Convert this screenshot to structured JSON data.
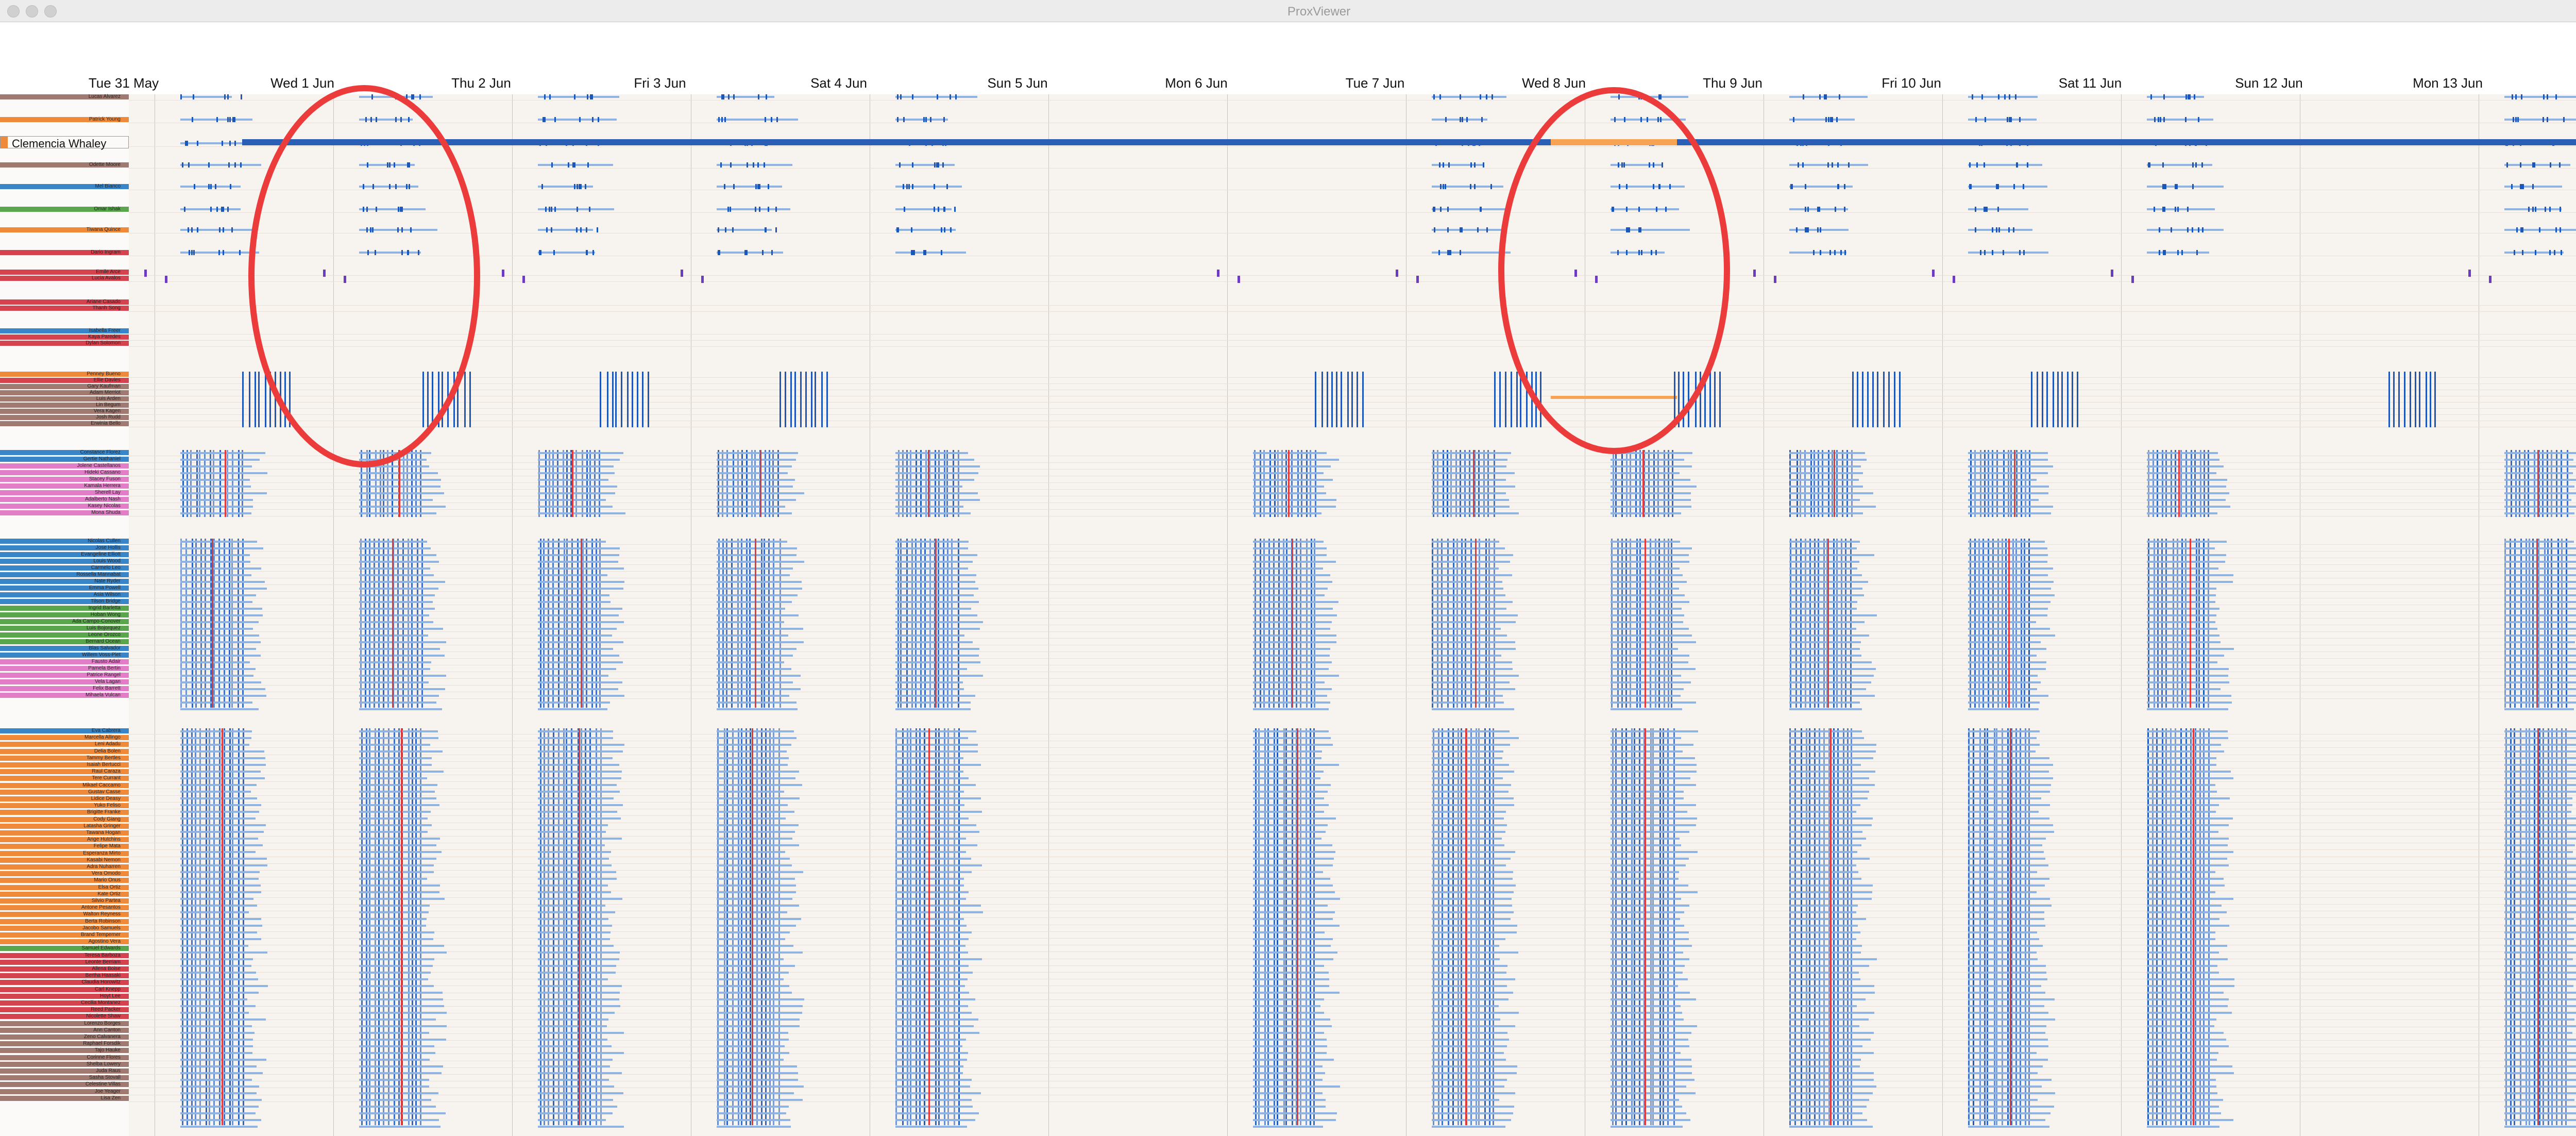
{
  "window": {
    "title": "ProxViewer"
  },
  "dates": [
    "Tue 31 May",
    "Wed 1 Jun",
    "Thu 2 Jun",
    "Fri 3 Jun",
    "Sat 4 Jun",
    "Sun 5 Jun",
    "Mon 6 Jun",
    "Tue 7 Jun",
    "Wed 8 Jun",
    "Thu 9 Jun",
    "Fri 10 Jun",
    "Sat 11 Jun",
    "Sun 12 Jun",
    "Mon 13 Jun"
  ],
  "highlighted_person": {
    "name": "Clemencia Whaley",
    "color": "#ef8a3a"
  },
  "colors": {
    "timeline_blue": "#1c57b8",
    "light_blue": "#8fb3e2",
    "red": "#e23a3a",
    "orange": "#f6a454",
    "purple": "#6c3cc0",
    "circle": "#ec3b3b"
  },
  "rows_top": [
    {
      "name": "Lucas Alvarez",
      "color": "#a07a70"
    },
    {
      "name": "Patrick Young",
      "color": "#ef8a3a"
    },
    {
      "name": "",
      "color": "#ffffff"
    },
    {
      "name": "Odette Moore",
      "color": "#a07a70"
    },
    {
      "name": "Mel Bianco",
      "color": "#3a85c8"
    },
    {
      "name": "Omar Ishak",
      "color": "#5aa64c"
    },
    {
      "name": "Tiwana Quince",
      "color": "#ef8a3a"
    },
    {
      "name": "Dario Ingram",
      "color": "#d5434f"
    },
    {
      "name": "Emile Arce",
      "color": "#d5434f"
    },
    {
      "name": "Lucia Avalos",
      "color": "#d5434f"
    },
    {
      "name": "Ariane Casado",
      "color": "#d5434f"
    },
    {
      "name": "Thanh Song",
      "color": "#d5434f"
    },
    {
      "name": "Isabella Freer",
      "color": "#3a85c8"
    },
    {
      "name": "Kaya Paredes",
      "color": "#d5434f"
    },
    {
      "name": "Dylan Solomon",
      "color": "#d5434f"
    },
    {
      "name": "Penney Bueno",
      "color": "#ef8a3a"
    },
    {
      "name": "Ellie Davies",
      "color": "#d5434f"
    },
    {
      "name": "Gary Kaufman",
      "color": "#a07a70"
    },
    {
      "name": "Adam Merriot",
      "color": "#a07a70"
    },
    {
      "name": "Luis Arden",
      "color": "#a07a70"
    },
    {
      "name": "Lin Begum",
      "color": "#a07a70"
    },
    {
      "name": "Vera Kagen",
      "color": "#a07a70"
    },
    {
      "name": "Josh Rudd",
      "color": "#a07a70"
    },
    {
      "name": "Erwinia Bello",
      "color": "#a07a70"
    }
  ],
  "rows_group2": [
    {
      "name": "Constance Florez",
      "color": "#3a85c8"
    },
    {
      "name": "Gertie Nathaniel",
      "color": "#3a85c8"
    },
    {
      "name": "Jolene Castellanos",
      "color": "#e27ec8"
    },
    {
      "name": "Hideki Cassano",
      "color": "#e27ec8"
    },
    {
      "name": "Stacey Fuson",
      "color": "#e27ec8"
    },
    {
      "name": "Kamala Herrera",
      "color": "#e27ec8"
    },
    {
      "name": "Sherell Lay",
      "color": "#e27ec8"
    },
    {
      "name": "Adalberto Nash",
      "color": "#e27ec8"
    },
    {
      "name": "Kasey Nicolas",
      "color": "#e27ec8"
    },
    {
      "name": "Mona Shuda",
      "color": "#e27ec8"
    }
  ],
  "rows_group3": [
    {
      "name": "Nicolas Cullen",
      "color": "#3a85c8"
    },
    {
      "name": "Jose Hollis",
      "color": "#3a85c8"
    },
    {
      "name": "Evangeline Elliott",
      "color": "#3a85c8"
    },
    {
      "name": "Louis Wood",
      "color": "#3a85c8"
    },
    {
      "name": "Carmelo Leo",
      "color": "#3a85c8"
    },
    {
      "name": "Rossella Mannabat",
      "color": "#3a85c8"
    },
    {
      "name": "Nate Ryder",
      "color": "#3a85c8"
    },
    {
      "name": "Emma Powell",
      "color": "#3a85c8"
    },
    {
      "name": "Asia Wilson",
      "color": "#3a85c8"
    },
    {
      "name": "Tilson Bridge",
      "color": "#3a85c8"
    },
    {
      "name": "Ingrid Barletta",
      "color": "#5aa64c"
    },
    {
      "name": "Hoban Wong",
      "color": "#5aa64c"
    },
    {
      "name": "Ada Campo-Conover",
      "color": "#5aa64c"
    },
    {
      "name": "Luis Bojorquez",
      "color": "#5aa64c"
    },
    {
      "name": "Leone Orozco",
      "color": "#5aa64c"
    },
    {
      "name": "Bernard Ocean",
      "color": "#5aa64c"
    },
    {
      "name": "Blas Salvador",
      "color": "#3a85c8"
    },
    {
      "name": "Willem Voss-Piet",
      "color": "#3a85c8"
    },
    {
      "name": "Fausto Adair",
      "color": "#e27ec8"
    },
    {
      "name": "Pamela Bertin",
      "color": "#e27ec8"
    },
    {
      "name": "Patrice Rangel",
      "color": "#e27ec8"
    },
    {
      "name": "Vela Lagan",
      "color": "#e27ec8"
    },
    {
      "name": "Felix Barrett",
      "color": "#e27ec8"
    },
    {
      "name": "Mihaela Vulcan",
      "color": "#e27ec8"
    }
  ],
  "rows_group4": [
    {
      "name": "Eva Cabrera",
      "color": "#3a85c8"
    },
    {
      "name": "Marcella Allingo",
      "color": "#ef8a3a"
    },
    {
      "name": "Leni Adadu",
      "color": "#ef8a3a"
    },
    {
      "name": "Delia Bolen",
      "color": "#ef8a3a"
    },
    {
      "name": "Tammy Bertles",
      "color": "#ef8a3a"
    },
    {
      "name": "Isaiah Bertucci",
      "color": "#ef8a3a"
    },
    {
      "name": "Raul Caraza",
      "color": "#ef8a3a"
    },
    {
      "name": "Tere Currant",
      "color": "#ef8a3a"
    },
    {
      "name": "Mikael Caccamo",
      "color": "#ef8a3a"
    },
    {
      "name": "Gustav Casse",
      "color": "#ef8a3a"
    },
    {
      "name": "Lidice Deasy",
      "color": "#ef8a3a"
    },
    {
      "name": "Yuko Feliso",
      "color": "#ef8a3a"
    },
    {
      "name": "Brigitte Franke",
      "color": "#ef8a3a"
    },
    {
      "name": "Cody Giang",
      "color": "#ef8a3a"
    },
    {
      "name": "Latasha Gringer",
      "color": "#ef8a3a"
    },
    {
      "name": "Tawana Hogan",
      "color": "#ef8a3a"
    },
    {
      "name": "Ange Hutchins",
      "color": "#ef8a3a"
    },
    {
      "name": "Felipe Mata",
      "color": "#ef8a3a"
    },
    {
      "name": "Esperanza Mirto",
      "color": "#ef8a3a"
    },
    {
      "name": "Kasabi Nemon",
      "color": "#ef8a3a"
    },
    {
      "name": "Adra Nuharren",
      "color": "#ef8a3a"
    },
    {
      "name": "Vera Omodo",
      "color": "#ef8a3a"
    },
    {
      "name": "Mario Onus",
      "color": "#ef8a3a"
    },
    {
      "name": "Elsa Ortiz",
      "color": "#ef8a3a"
    },
    {
      "name": "Kate Ortiz",
      "color": "#ef8a3a"
    },
    {
      "name": "Silvio Partea",
      "color": "#ef8a3a"
    },
    {
      "name": "Antone Pesantos",
      "color": "#ef8a3a"
    },
    {
      "name": "Walton Reyness",
      "color": "#ef8a3a"
    },
    {
      "name": "Berta Robinson",
      "color": "#ef8a3a"
    },
    {
      "name": "Jacobo Samuels",
      "color": "#ef8a3a"
    },
    {
      "name": "Brand Temperner",
      "color": "#ef8a3a"
    },
    {
      "name": "Agostino Vera",
      "color": "#ef8a3a"
    },
    {
      "name": "Samuel Edwards",
      "color": "#5aa64c"
    },
    {
      "name": "Teresa Barboza",
      "color": "#d5434f"
    },
    {
      "name": "Leonte Berriam",
      "color": "#d5434f"
    },
    {
      "name": "Allena Boise",
      "color": "#d5434f"
    },
    {
      "name": "Bertha Haasaki",
      "color": "#d5434f"
    },
    {
      "name": "Claudia Horowitz",
      "color": "#d5434f"
    },
    {
      "name": "Carl Knepp",
      "color": "#d5434f"
    },
    {
      "name": "Hoyt Lee",
      "color": "#d5434f"
    },
    {
      "name": "Cecilia Montanez",
      "color": "#d5434f"
    },
    {
      "name": "Reed Packer",
      "color": "#d5434f"
    },
    {
      "name": "Nicolette Shaw",
      "color": "#d5434f"
    },
    {
      "name": "Lorenzo Borges",
      "color": "#a07a70"
    },
    {
      "name": "Ann Canton",
      "color": "#a07a70"
    },
    {
      "name": "Zeno Calvanera",
      "color": "#a07a70"
    },
    {
      "name": "Raphael Forsdik",
      "color": "#a07a70"
    },
    {
      "name": "Tajo Hauke",
      "color": "#a07a70"
    },
    {
      "name": "Corinne Flores",
      "color": "#a07a70"
    },
    {
      "name": "Shelba Lowery",
      "color": "#a07a70"
    },
    {
      "name": "Juda Raus",
      "color": "#a07a70"
    },
    {
      "name": "Sasha Stovall",
      "color": "#a07a70"
    },
    {
      "name": "Celestine Villas",
      "color": "#a07a70"
    },
    {
      "name": "Joe Yeager",
      "color": "#a07a70"
    },
    {
      "name": "Lisa Zen",
      "color": "#a07a70"
    }
  ]
}
